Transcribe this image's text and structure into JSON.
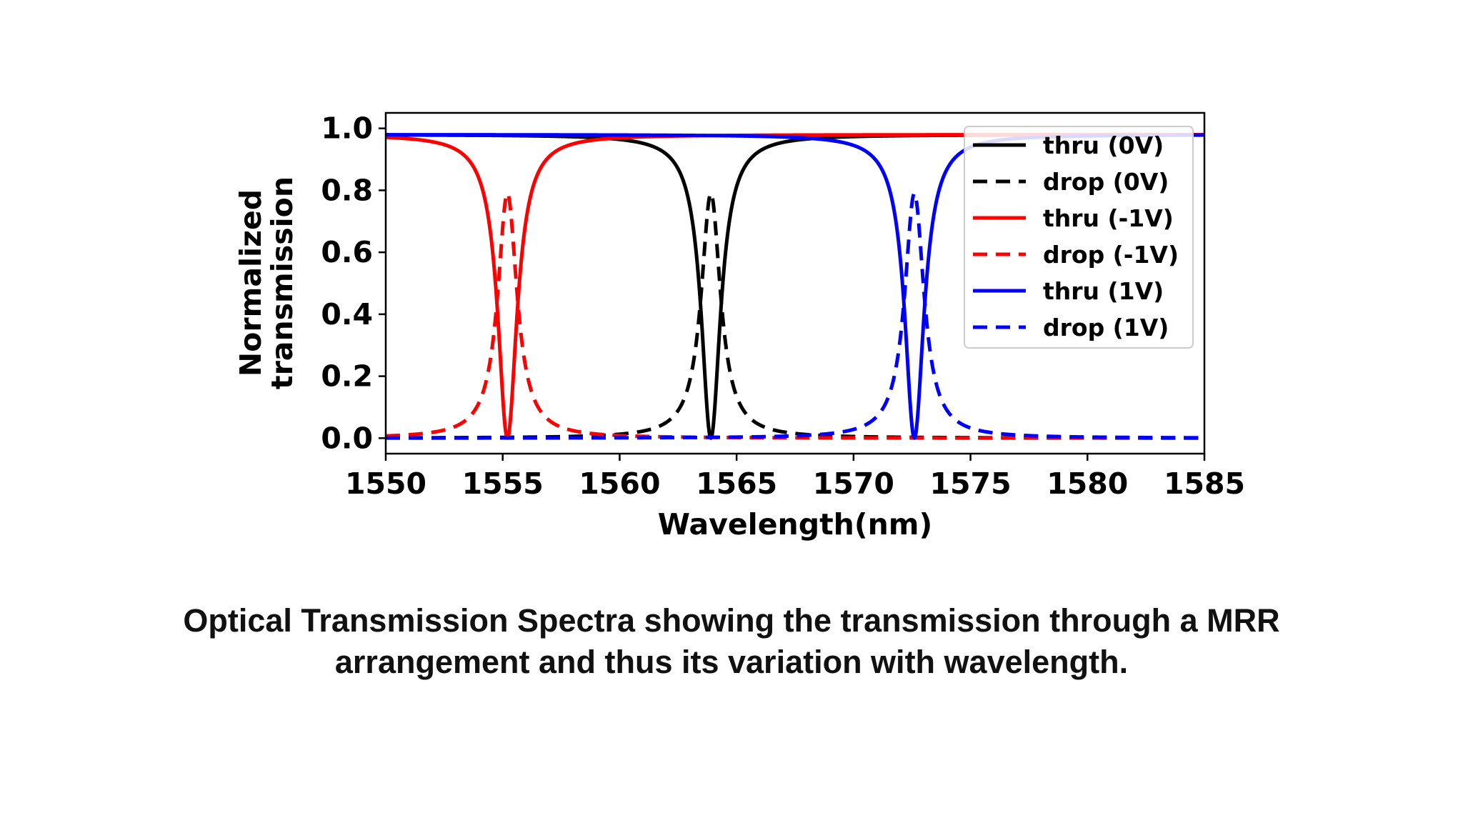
{
  "chart_data": {
    "type": "line",
    "xlabel": "Wavelength(nm)",
    "ylabel_lines": [
      "Normalized",
      "transmission"
    ],
    "xlim": [
      1550,
      1585
    ],
    "ylim": [
      -0.05,
      1.05
    ],
    "xticks": [
      1550,
      1555,
      1560,
      1565,
      1570,
      1575,
      1580,
      1585
    ],
    "yticks": [
      0.0,
      0.2,
      0.4,
      0.6,
      0.8,
      1.0
    ],
    "ytick_labels": [
      "0.0",
      "0.2",
      "0.4",
      "0.6",
      "0.8",
      "1.0"
    ],
    "grid": false,
    "legend_position": "top-right",
    "series": [
      {
        "name": "thru (0V)",
        "color": "#000000",
        "dash": "solid",
        "kind": "thru",
        "resonance": 1563.9,
        "fwhm": 1.0,
        "dip_to": 0.0,
        "baseline": 0.98
      },
      {
        "name": "drop (0V)",
        "color": "#000000",
        "dash": "dashed",
        "kind": "drop",
        "resonance": 1563.9,
        "fwhm": 1.0,
        "peak": 0.79,
        "baseline": 0.0
      },
      {
        "name": "thru (-1V)",
        "color": "#ff0000",
        "dash": "solid",
        "kind": "thru",
        "resonance": 1555.2,
        "fwhm": 1.0,
        "dip_to": 0.0,
        "baseline": 0.98
      },
      {
        "name": "drop (-1V)",
        "color": "#ff0000",
        "dash": "dashed",
        "kind": "drop",
        "resonance": 1555.2,
        "fwhm": 1.0,
        "peak": 0.79,
        "baseline": 0.0
      },
      {
        "name": "thru (1V)",
        "color": "#0000ff",
        "dash": "solid",
        "kind": "thru",
        "resonance": 1572.6,
        "fwhm": 1.0,
        "dip_to": 0.0,
        "baseline": 0.98
      },
      {
        "name": "drop (1V)",
        "color": "#0000ff",
        "dash": "dashed",
        "kind": "drop",
        "resonance": 1572.6,
        "fwhm": 1.0,
        "peak": 0.79,
        "baseline": 0.0
      }
    ]
  },
  "caption": {
    "line1": "Optical Transmission Spectra showing the transmission through a MRR",
    "line2": "arrangement and thus  its variation with wavelength."
  }
}
